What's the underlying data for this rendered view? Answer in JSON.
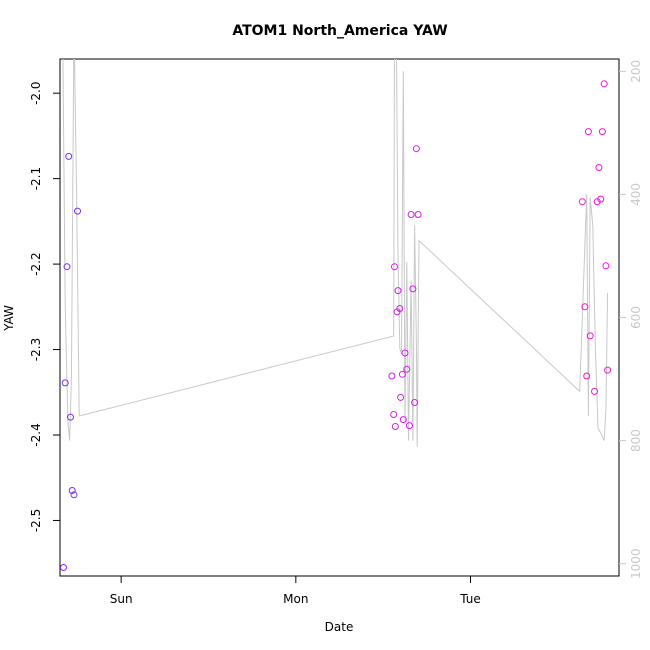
{
  "chart_data": {
    "type": "scatter",
    "title": "ATOM1 North_America YAW",
    "xlabel": "Date",
    "ylabel": "YAW",
    "x_tick_labels": [
      "Sun",
      "Mon",
      "Tue"
    ],
    "x_range_days": [
      -0.35,
      2.85
    ],
    "y_left": {
      "range": [
        -2.565,
        -1.96
      ],
      "ticks": [
        -2.5,
        -2.4,
        -2.3,
        -2.2,
        -2.1,
        -2.0
      ]
    },
    "y_right": {
      "range": [
        1020,
        180
      ],
      "ticks": [
        200,
        400,
        600,
        800,
        1000
      ],
      "color": "#c8c8c8"
    },
    "series": [
      {
        "color": "#7b2ff7",
        "points": [
          [
            -0.33,
            -2.555
          ],
          [
            -0.32,
            -2.339
          ],
          [
            -0.31,
            -2.203
          ],
          [
            -0.3,
            -2.074
          ],
          [
            -0.29,
            -2.379
          ],
          [
            -0.28,
            -2.465
          ],
          [
            -0.27,
            -2.47
          ],
          [
            -0.25,
            -2.138
          ]
        ]
      },
      {
        "color": "#d020e8",
        "points": [
          [
            1.55,
            -2.331
          ],
          [
            1.56,
            -2.376
          ],
          [
            1.565,
            -2.203
          ],
          [
            1.57,
            -2.39
          ],
          [
            1.58,
            -2.256
          ],
          [
            1.585,
            -2.231
          ],
          [
            1.595,
            -2.252
          ],
          [
            1.6,
            -2.356
          ],
          [
            1.61,
            -2.329
          ],
          [
            1.615,
            -2.382
          ],
          [
            1.625,
            -2.304
          ],
          [
            1.635,
            -2.323
          ],
          [
            1.65,
            -2.389
          ],
          [
            1.66,
            -2.142
          ],
          [
            1.67,
            -2.229
          ],
          [
            1.68,
            -2.362
          ],
          [
            1.69,
            -2.065
          ],
          [
            1.7,
            -2.142
          ]
        ]
      },
      {
        "color": "#ff10d8",
        "points": [
          [
            2.64,
            -2.127
          ],
          [
            2.655,
            -2.25
          ],
          [
            2.665,
            -2.331
          ],
          [
            2.675,
            -2.045
          ],
          [
            2.685,
            -2.284
          ],
          [
            2.71,
            -2.349
          ],
          [
            2.725,
            -2.127
          ],
          [
            2.735,
            -2.087
          ],
          [
            2.745,
            -2.124
          ],
          [
            2.755,
            -2.045
          ],
          [
            2.765,
            -1.989
          ],
          [
            2.775,
            -2.202
          ],
          [
            2.785,
            -2.324
          ]
        ]
      }
    ],
    "line_series": {
      "color": "#c8c8c8",
      "axis": "right",
      "points": [
        [
          -0.335,
          120
        ],
        [
          -0.32,
          580
        ],
        [
          -0.305,
          770
        ],
        [
          -0.295,
          800
        ],
        [
          -0.285,
          700
        ],
        [
          -0.27,
          120
        ],
        [
          -0.255,
          400
        ],
        [
          -0.24,
          760
        ],
        [
          1.56,
          630
        ],
        [
          1.565,
          140
        ],
        [
          1.575,
          130
        ],
        [
          1.585,
          500
        ],
        [
          1.595,
          650
        ],
        [
          1.605,
          660
        ],
        [
          1.615,
          200
        ],
        [
          1.625,
          770
        ],
        [
          1.635,
          510
        ],
        [
          1.645,
          800
        ],
        [
          1.66,
          540
        ],
        [
          1.67,
          800
        ],
        [
          1.68,
          450
        ],
        [
          1.69,
          640
        ],
        [
          1.695,
          810
        ],
        [
          1.705,
          475
        ],
        [
          2.625,
          720
        ],
        [
          2.645,
          560
        ],
        [
          2.665,
          400
        ],
        [
          2.675,
          760
        ],
        [
          2.685,
          405
        ],
        [
          2.7,
          450
        ],
        [
          2.715,
          650
        ],
        [
          2.73,
          780
        ],
        [
          2.75,
          790
        ],
        [
          2.765,
          800
        ],
        [
          2.775,
          750
        ],
        [
          2.785,
          560
        ]
      ]
    }
  }
}
